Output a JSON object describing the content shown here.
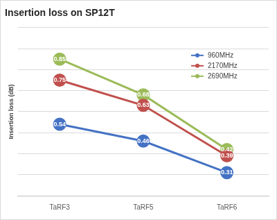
{
  "chart_data": {
    "type": "line",
    "title": "Insertion loss on SP12T",
    "y_label": "Insertion loss (dB)",
    "categories": [
      "TaRF3",
      "TaRF5",
      "TaRF6"
    ],
    "series": [
      {
        "name": "960MHz",
        "color": "#4472c4",
        "values": [
          0.54,
          0.46,
          0.31
        ]
      },
      {
        "name": "2170MHz",
        "color": "#c0504d",
        "values": [
          0.75,
          0.63,
          0.39
        ]
      },
      {
        "name": "2690MHz",
        "color": "#9bbb59",
        "values": [
          0.85,
          0.68,
          0.42
        ]
      }
    ],
    "ylim": [
      0.2,
      1.0
    ],
    "yticks": [
      0.2,
      0.3,
      0.4,
      0.5,
      0.6,
      0.7,
      0.8,
      0.9,
      1.0
    ],
    "grid": true,
    "legend": "top-right",
    "data_labels": true,
    "tick_labels": "x"
  }
}
